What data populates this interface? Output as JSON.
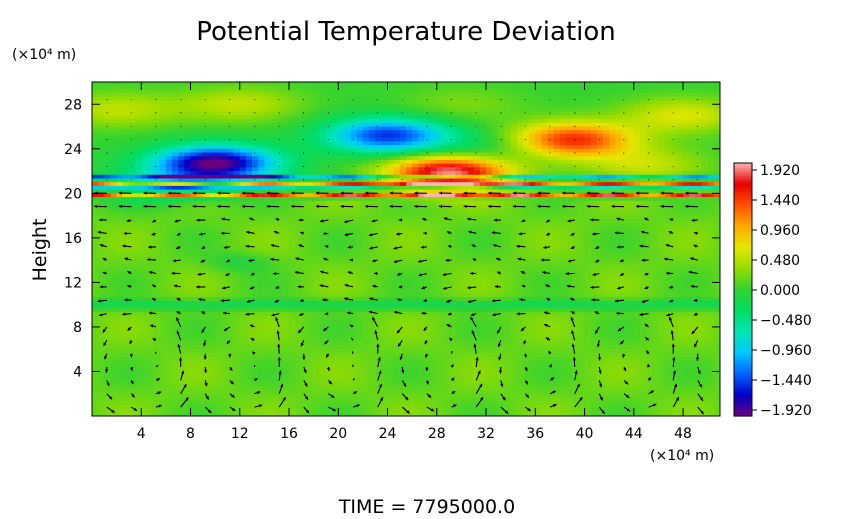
{
  "chart_data": {
    "type": "heatmap",
    "title": "Potential Temperature Deviation",
    "ylabel": "Height",
    "y_unit": "(×10⁴ m)",
    "x_unit": "(×10⁴ m)",
    "xlim": [
      0,
      51
    ],
    "ylim": [
      0,
      30
    ],
    "x_ticks": [
      "4",
      "8",
      "12",
      "16",
      "20",
      "24",
      "28",
      "32",
      "36",
      "40",
      "44",
      "48"
    ],
    "y_ticks": [
      "4",
      "8",
      "12",
      "16",
      "20",
      "24",
      "28"
    ],
    "colorbar": {
      "range": [
        -1.92,
        1.92
      ],
      "tick_labels": [
        "1.920",
        "1.440",
        "0.960",
        "0.480",
        "0.000",
        "−0.480",
        "−0.960",
        "−1.440",
        "−1.920"
      ],
      "colors": [
        "#6a0080",
        "#0000c8",
        "#0064ff",
        "#00c8ff",
        "#00e6b4",
        "#00dc64",
        "#32d232",
        "#96dc00",
        "#e6e600",
        "#ffaa00",
        "#ff5000",
        "#e60000",
        "#ffb4b4"
      ]
    },
    "features": [
      {
        "x": 10,
        "y": 22.7,
        "value": -1.92
      },
      {
        "x": 24,
        "y": 25.2,
        "value": -1.44
      },
      {
        "x": 39,
        "y": 24.8,
        "value": 1.44
      },
      {
        "x": 29,
        "y": 21.8,
        "value": 1.92
      },
      {
        "x": 2,
        "y": 27.5,
        "value": 0.48
      },
      {
        "x": 12,
        "y": 28,
        "value": 0.48
      },
      {
        "x": 30,
        "y": 28,
        "value": 0.24
      },
      {
        "x": 48,
        "y": 27,
        "value": 0.6
      },
      {
        "x": 45,
        "y": 22.5,
        "value": 0.5
      },
      {
        "x": 6,
        "y": 20.5,
        "value": -0.5
      },
      {
        "x": 32,
        "y": 24,
        "value": -0.3
      }
    ],
    "horizontal_bands": [
      {
        "y": 21.4,
        "value": -1.6
      },
      {
        "y": 20.9,
        "value": 1.6
      },
      {
        "y": 20.4,
        "value": -1.0
      },
      {
        "y": 19.9,
        "value": 1.92
      }
    ],
    "wind_vectors": true,
    "footer": "TIME  =  7795000.0"
  }
}
